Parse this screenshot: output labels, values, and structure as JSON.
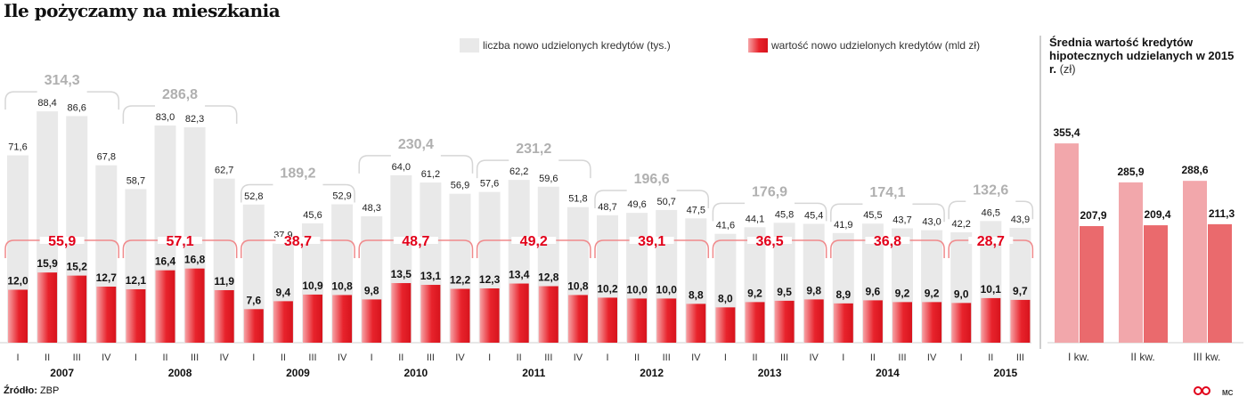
{
  "title": "Ile pożyczamy na mieszkania",
  "source": {
    "label": "Źródło:",
    "value": "ZBP"
  },
  "credit": "MC",
  "logo_color": "#e2001a",
  "colors": {
    "count_bar": "#e9e9e9",
    "value_bar": "#e8232c",
    "value_bar_light": "#f7b2b4",
    "bracket": "#d6d6d6",
    "bracket_red": "#f08a8c",
    "year_total": "#b0b0b0",
    "value_total": "#e2001a",
    "side_bar_light": "#f2a7ab",
    "side_bar_dark": "#ea6a6d"
  },
  "legend": {
    "count": "liczba nowo udzielonych kredytów (tys.)",
    "value": "wartość nowo udzielonych kredytów (mld zł)"
  },
  "chart_data": [
    {
      "type": "bar",
      "title": "Ile pożyczamy na mieszkania",
      "categories": [
        "I",
        "II",
        "III",
        "IV"
      ],
      "groups": [
        {
          "year": "2007",
          "count": [
            71.6,
            88.4,
            86.6,
            67.8
          ],
          "value": [
            12.0,
            15.9,
            15.2,
            12.7
          ],
          "count_total": "314,3",
          "value_total": "55,9"
        },
        {
          "year": "2008",
          "count": [
            58.7,
            83.0,
            82.3,
            62.7
          ],
          "value": [
            12.1,
            16.4,
            16.8,
            11.9
          ],
          "count_total": "286,8",
          "value_total": "57,1"
        },
        {
          "year": "2009",
          "count": [
            52.8,
            37.9,
            45.6,
            52.9
          ],
          "value": [
            7.6,
            9.4,
            10.9,
            10.8
          ],
          "count_total": "189,2",
          "value_total": "38,7"
        },
        {
          "year": "2010",
          "count": [
            48.3,
            64.0,
            61.2,
            56.9
          ],
          "value": [
            9.8,
            13.5,
            13.1,
            12.2
          ],
          "count_total": "230,4",
          "value_total": "48,7"
        },
        {
          "year": "2011",
          "count": [
            57.6,
            62.2,
            59.6,
            51.8
          ],
          "value": [
            12.3,
            13.4,
            12.8,
            10.8
          ],
          "count_total": "231,2",
          "value_total": "49,2"
        },
        {
          "year": "2012",
          "count": [
            48.7,
            49.6,
            50.7,
            47.5
          ],
          "value": [
            10.2,
            10.0,
            10.0,
            8.8
          ],
          "count_total": "196,6",
          "value_total": "39,1"
        },
        {
          "year": "2013",
          "count": [
            41.6,
            44.1,
            45.8,
            45.4
          ],
          "value": [
            8.0,
            9.2,
            9.5,
            9.8
          ],
          "count_total": "176,9",
          "value_total": "36,5"
        },
        {
          "year": "2014",
          "count": [
            41.9,
            45.5,
            43.7,
            43.0
          ],
          "value": [
            8.9,
            9.6,
            9.2,
            9.2
          ],
          "count_total": "174,1",
          "value_total": "36,8"
        },
        {
          "year": "2015",
          "count": [
            42.2,
            46.5,
            43.9
          ],
          "value": [
            9.0,
            10.1,
            9.7
          ],
          "count_total": "132,6",
          "value_total": "28,7"
        }
      ],
      "series": [
        {
          "name": "liczba nowo udzielonych kredytów (tys.)",
          "key": "count"
        },
        {
          "name": "wartość nowo udzielonych kredytów (mld zł)",
          "key": "value"
        }
      ],
      "count_ylim": [
        0,
        100
      ],
      "value_ylim": [
        0,
        25
      ],
      "grid": false,
      "legend_position": "top-right"
    },
    {
      "type": "bar",
      "title": "Średnia wartość kredytów hipotecznych udzielanych w 2015 r.",
      "unit": "(zł)",
      "categories": [
        "I kw.",
        "II kw.",
        "III kw."
      ],
      "series": [
        {
          "values": [
            355.4,
            285.9,
            288.6
          ],
          "labels": [
            "355,4",
            "285,9",
            "288,6"
          ]
        },
        {
          "values": [
            207.9,
            209.4,
            211.3
          ],
          "labels": [
            "207,9",
            "209,4",
            "211,3"
          ]
        }
      ],
      "ylim": [
        0,
        400
      ],
      "grid": false
    }
  ]
}
